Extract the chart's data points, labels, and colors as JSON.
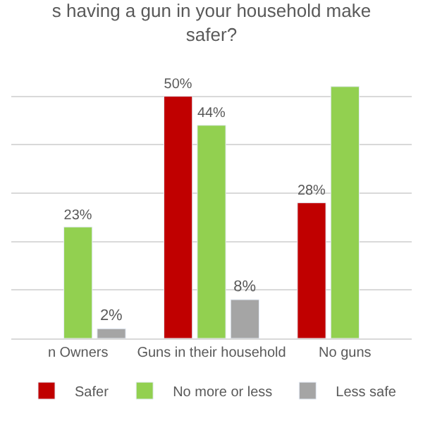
{
  "chart_data": {
    "type": "bar",
    "title": "s having a gun in your household make\nsafer?",
    "categories": [
      "n Owners",
      "Guns in their household",
      "No guns"
    ],
    "series": [
      {
        "name": "Safer",
        "color": "#c00000",
        "values": [
          null,
          50,
          28
        ],
        "value_labels": [
          null,
          "50%",
          "28%"
        ]
      },
      {
        "name": "No more or less",
        "color": "#92d050",
        "values": [
          23,
          44,
          52
        ],
        "value_labels": [
          "23%",
          "44%",
          null
        ]
      },
      {
        "name": "Less safe",
        "color": "#a5a5a5",
        "values": [
          2,
          8,
          null
        ],
        "value_labels": [
          "2%",
          "8%",
          null
        ]
      }
    ],
    "tick_labels": "x",
    "grid": "y",
    "legend": "bottom"
  }
}
